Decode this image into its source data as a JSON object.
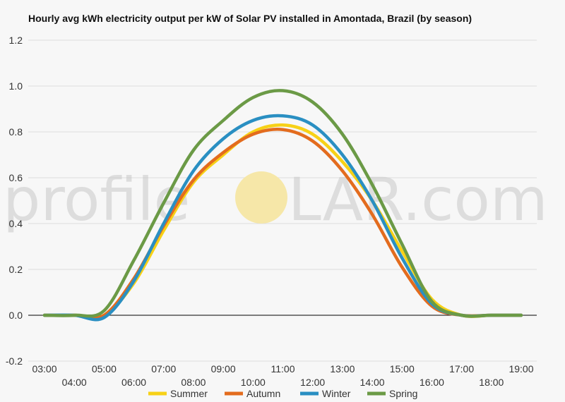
{
  "chart_data": {
    "type": "line",
    "title": "Hourly avg kWh electricity output per kW of Solar PV installed in Amontada, Brazil (by season)",
    "xlabel": "",
    "ylabel": "",
    "x": [
      "03:00",
      "04:00",
      "05:00",
      "06:00",
      "07:00",
      "08:00",
      "09:00",
      "10:00",
      "11:00",
      "12:00",
      "13:00",
      "14:00",
      "15:00",
      "16:00",
      "17:00",
      "18:00",
      "19:00"
    ],
    "ylim": [
      -0.2,
      1.2
    ],
    "yticks": [
      "-0.2",
      "0.0",
      "0.2",
      "0.4",
      "0.6",
      "0.8",
      "1.0",
      "1.2"
    ],
    "grid": true,
    "legend_position": "bottom",
    "series": [
      {
        "name": "Summer",
        "color": "#f7d117",
        "values": [
          0.0,
          0.0,
          0.0,
          0.14,
          0.37,
          0.58,
          0.7,
          0.8,
          0.83,
          0.79,
          0.67,
          0.5,
          0.28,
          0.07,
          0.0,
          0.0,
          0.0
        ]
      },
      {
        "name": "Autumn",
        "color": "#e36c1e",
        "values": [
          0.0,
          0.0,
          0.0,
          0.16,
          0.39,
          0.59,
          0.71,
          0.79,
          0.81,
          0.76,
          0.63,
          0.44,
          0.21,
          0.04,
          0.0,
          0.0,
          0.0
        ]
      },
      {
        "name": "Winter",
        "color": "#2a8fc2",
        "values": [
          0.0,
          0.0,
          -0.01,
          0.15,
          0.4,
          0.63,
          0.77,
          0.85,
          0.87,
          0.83,
          0.7,
          0.5,
          0.25,
          0.05,
          0.0,
          0.0,
          0.0
        ]
      },
      {
        "name": "Spring",
        "color": "#6b9a46",
        "values": [
          0.0,
          0.0,
          0.02,
          0.24,
          0.49,
          0.72,
          0.85,
          0.95,
          0.98,
          0.93,
          0.79,
          0.57,
          0.31,
          0.06,
          0.0,
          0.0,
          0.0
        ]
      }
    ],
    "zero_line_color": "#000000",
    "grid_color": "#dddddd"
  },
  "watermark": {
    "left_text": "profile",
    "right_text": "LAR.com",
    "sun_color": "#f6e7a8",
    "logo_text": "profileSOLAR.com"
  }
}
